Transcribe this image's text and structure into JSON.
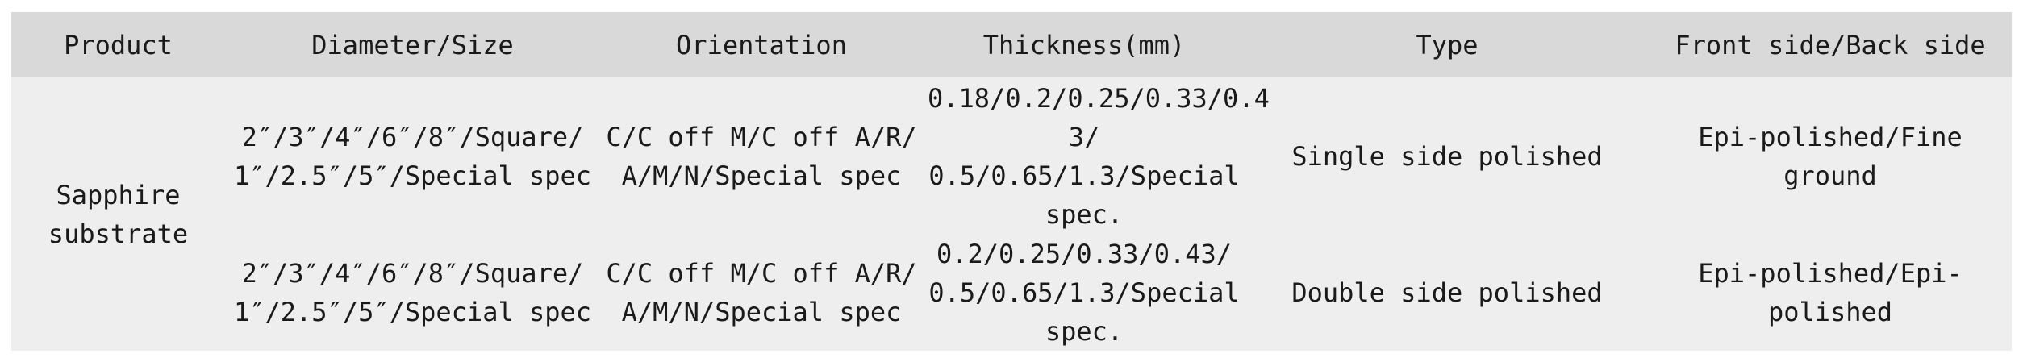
{
  "table": {
    "headers": [
      "Product",
      "Diameter/Size",
      "Orientation",
      "Thickness(mm)",
      "Type",
      "Front side/Back side"
    ],
    "product": "Sapphire\nsubstrate",
    "rows": [
      {
        "size": "2″/3″/4″/6″/8″/Square/\n1″/2.5″/5″/Special spec",
        "orientation": "C/C off M/C off A/R/\nA/M/N/Special spec",
        "thickness": "0.18/0.2/0.25/0.33/0.4\n3/\n0.5/0.65/1.3/Special\nspec.",
        "type": "Single side polished",
        "sides": "Epi-polished/Fine ground"
      },
      {
        "size": "2″/3″/4″/6″/8″/Square/\n1″/2.5″/5″/Special spec",
        "orientation": "C/C off M/C off A/R/\nA/M/N/Special spec",
        "thickness": "0.2/0.25/0.33/0.43/\n0.5/0.65/1.3/Special\nspec.",
        "type": "Double side polished",
        "sides": "Epi-polished/Epi-polished"
      }
    ]
  }
}
